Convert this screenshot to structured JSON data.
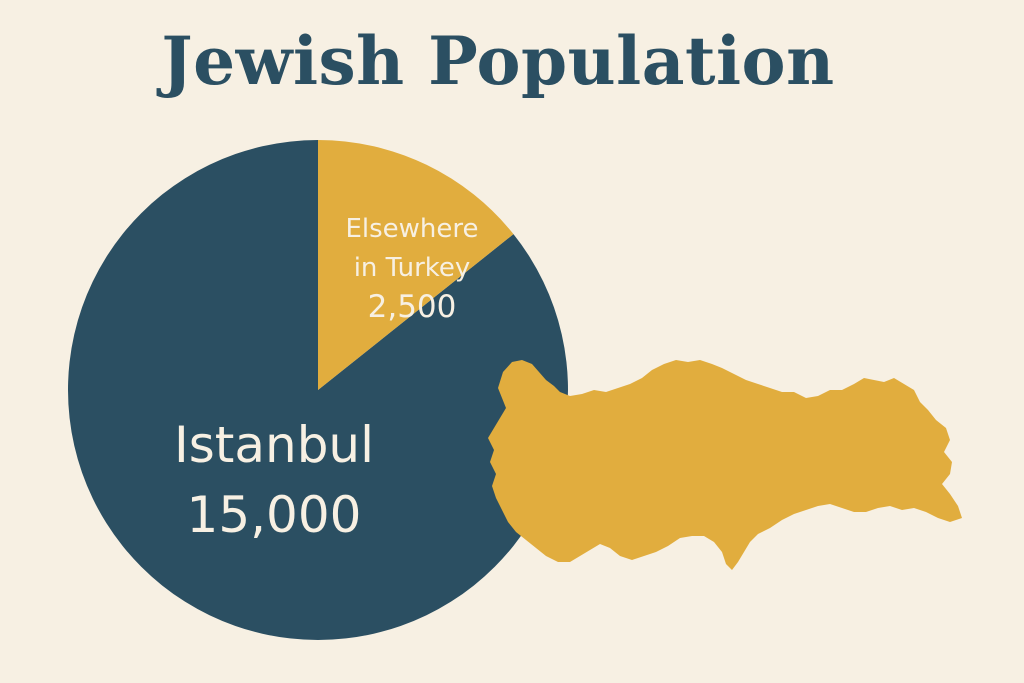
{
  "title": "Jewish Population",
  "colors": {
    "background": "#f7f0e3",
    "navy": "#2b4f62",
    "gold": "#e1ad3e",
    "label": "#f7f0e3"
  },
  "chart_data": {
    "type": "pie",
    "title": "Jewish Population",
    "slices": [
      {
        "label": "Istanbul",
        "value": 15000,
        "value_label": "15,000",
        "color": "#2b4f62"
      },
      {
        "label": "Elsewhere in Turkey",
        "label_lines": [
          "Elsewhere",
          "in Turkey"
        ],
        "value": 2500,
        "value_label": "2,500",
        "color": "#e1ad3e"
      }
    ]
  },
  "map": {
    "country": "Turkey",
    "color": "#e1ad3e"
  }
}
